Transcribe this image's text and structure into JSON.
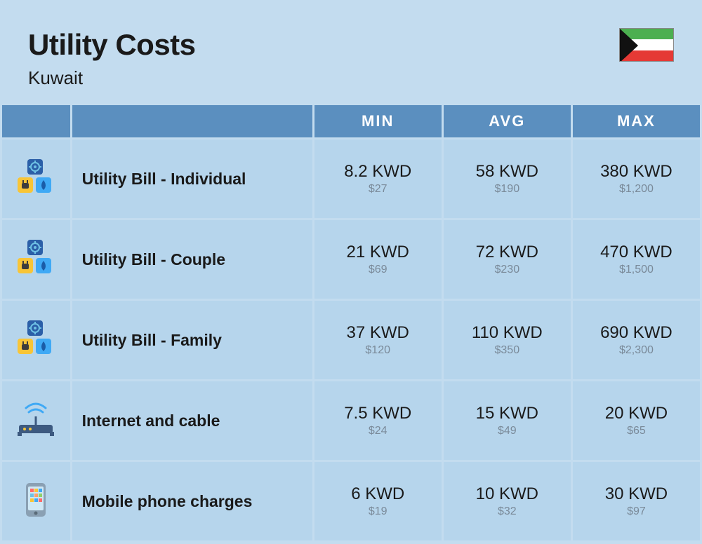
{
  "header": {
    "title": "Utility Costs",
    "subtitle": "Kuwait"
  },
  "columns": {
    "blank1": "",
    "blank2": "",
    "min": "MIN",
    "avg": "AVG",
    "max": "MAX"
  },
  "rows": [
    {
      "icon": "utility",
      "label": "Utility Bill - Individual",
      "min": {
        "kwd": "8.2 KWD",
        "usd": "$27"
      },
      "avg": {
        "kwd": "58 KWD",
        "usd": "$190"
      },
      "max": {
        "kwd": "380 KWD",
        "usd": "$1,200"
      }
    },
    {
      "icon": "utility",
      "label": "Utility Bill - Couple",
      "min": {
        "kwd": "21 KWD",
        "usd": "$69"
      },
      "avg": {
        "kwd": "72 KWD",
        "usd": "$230"
      },
      "max": {
        "kwd": "470 KWD",
        "usd": "$1,500"
      }
    },
    {
      "icon": "utility",
      "label": "Utility Bill - Family",
      "min": {
        "kwd": "37 KWD",
        "usd": "$120"
      },
      "avg": {
        "kwd": "110 KWD",
        "usd": "$350"
      },
      "max": {
        "kwd": "690 KWD",
        "usd": "$2,300"
      }
    },
    {
      "icon": "router",
      "label": "Internet and cable",
      "min": {
        "kwd": "7.5 KWD",
        "usd": "$24"
      },
      "avg": {
        "kwd": "15 KWD",
        "usd": "$49"
      },
      "max": {
        "kwd": "20 KWD",
        "usd": "$65"
      }
    },
    {
      "icon": "phone",
      "label": "Mobile phone charges",
      "min": {
        "kwd": "6 KWD",
        "usd": "$19"
      },
      "avg": {
        "kwd": "10 KWD",
        "usd": "$32"
      },
      "max": {
        "kwd": "30 KWD",
        "usd": "$97"
      }
    }
  ],
  "style": {
    "background": "#c3dcef",
    "header_bg": "#5b8fbf",
    "cell_bg": "#b6d5ec",
    "text": "#1a1a1a",
    "usd_text": "#7a8a99",
    "icon_colors": {
      "gear_bg": "#2b5fa8",
      "gear_fg": "#6ec1e4",
      "plug_bg": "#f8c537",
      "plug_fg": "#3d3d3d",
      "drop_bg": "#3fa9f5",
      "drop_fg": "#1a5ca8",
      "router_body": "#3d5a80",
      "router_wave": "#3fa9f5",
      "phone_body": "#8aa0b3",
      "phone_screen": "#cfe8f5"
    }
  }
}
